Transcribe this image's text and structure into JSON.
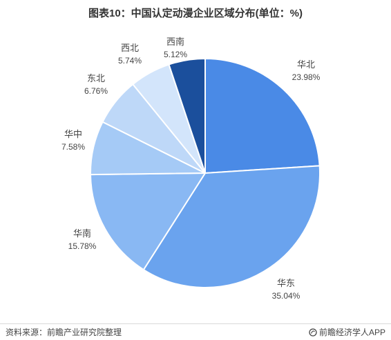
{
  "title": "图表10：中国认定动漫企业区域分布(单位：%)",
  "footer": {
    "source": "资料来源：前瞻产业研究院整理",
    "brand": "前瞻经济学人APP",
    "brand_icon": "watermark-logo-icon"
  },
  "chart_data": {
    "type": "pie",
    "title": "图表10：中国认定动漫企业区域分布(单位：%)",
    "start_angle": "12 o'clock",
    "direction": "clockwise",
    "slices": [
      {
        "label": "华北",
        "value": 23.98,
        "value_text": "23.98%",
        "color": "#4a8ae6"
      },
      {
        "label": "华东",
        "value": 35.04,
        "value_text": "35.04%",
        "color": "#6aa3ee"
      },
      {
        "label": "华南",
        "value": 15.78,
        "value_text": "15.78%",
        "color": "#89b8f3"
      },
      {
        "label": "华中",
        "value": 7.58,
        "value_text": "7.58%",
        "color": "#a5caf6"
      },
      {
        "label": "东北",
        "value": 6.76,
        "value_text": "6.76%",
        "color": "#bed8f8"
      },
      {
        "label": "西北",
        "value": 5.74,
        "value_text": "5.74%",
        "color": "#d3e5fb"
      },
      {
        "label": "西南",
        "value": 5.12,
        "value_text": "5.12%",
        "color": "#1b4f9c"
      }
    ]
  }
}
